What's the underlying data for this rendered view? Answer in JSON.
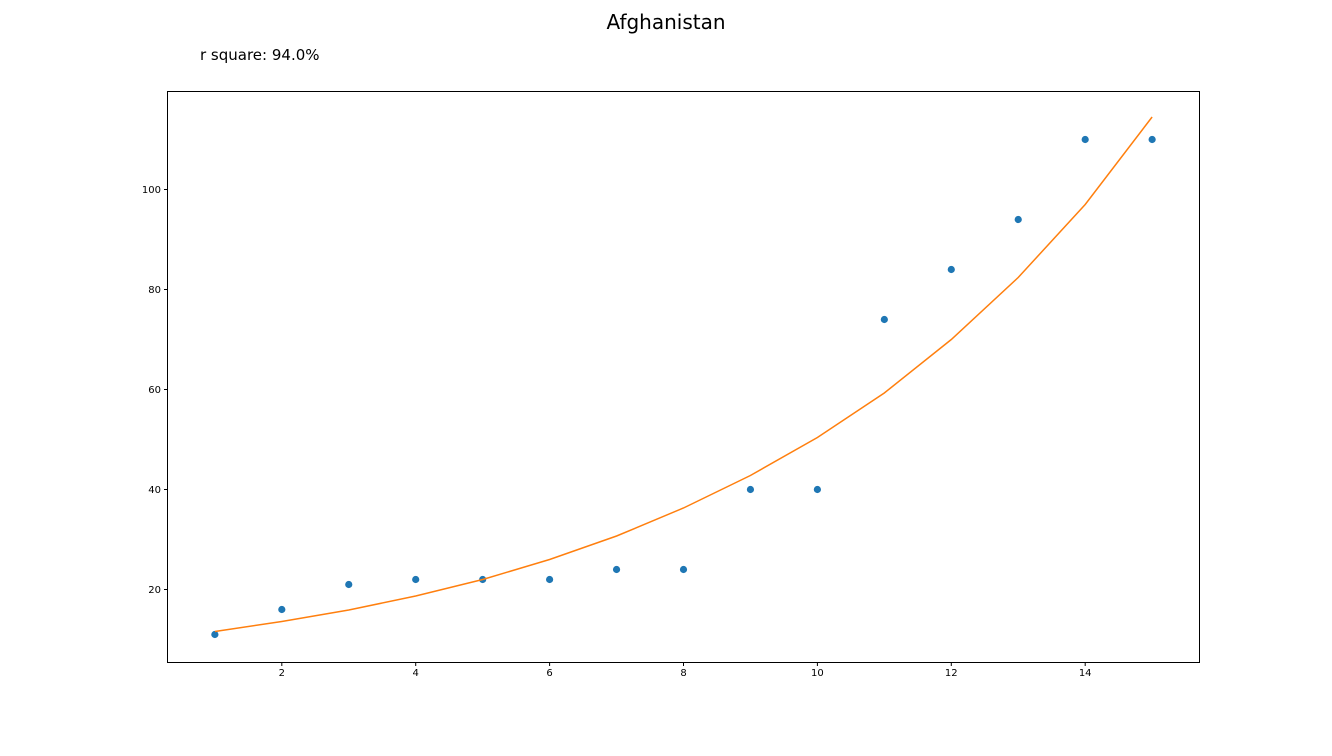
{
  "chart_data": {
    "type": "scatter",
    "title": "Afghanistan",
    "annotation": "r square: 94.0%",
    "xlabel": "",
    "ylabel": "",
    "xlim": [
      0.3,
      15.7
    ],
    "ylim": [
      5.5,
      119.5
    ],
    "xticks": [
      2,
      4,
      6,
      8,
      10,
      12,
      14
    ],
    "yticks": [
      20,
      40,
      60,
      80,
      100
    ],
    "grid": false,
    "series": [
      {
        "kind": "scatter",
        "color": "#1f77b4",
        "x": [
          1,
          2,
          3,
          4,
          5,
          6,
          7,
          8,
          9,
          10,
          11,
          12,
          13,
          14,
          15
        ],
        "y": [
          11,
          16,
          21,
          22,
          22,
          22,
          24,
          24,
          40,
          40,
          74,
          84,
          94,
          110,
          110
        ]
      },
      {
        "kind": "line",
        "color": "#ff7f0e",
        "x": [
          1,
          2,
          3,
          4,
          5,
          6,
          7,
          8,
          9,
          10,
          11,
          12,
          13,
          14,
          15
        ],
        "y": [
          11.6,
          13.6,
          15.9,
          18.7,
          22.0,
          26.0,
          30.7,
          36.3,
          42.8,
          50.4,
          59.3,
          70.0,
          82.4,
          97.0,
          114.5
        ]
      }
    ]
  }
}
